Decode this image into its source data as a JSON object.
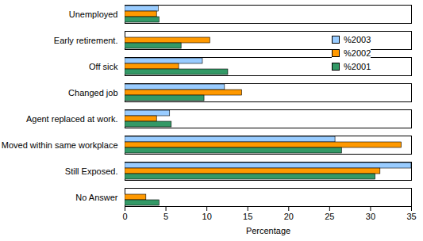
{
  "chart_data": {
    "type": "bar",
    "orientation": "horizontal",
    "legend": "right",
    "x_label": "Percentage",
    "categories": [
      "Unemployed",
      "Early retirement.",
      "Off sick",
      "Changed job",
      "Agent replaced at work.",
      "Moved within same workplace",
      "Still Exposed.",
      "No Answer"
    ],
    "series": [
      {
        "name": "%2003",
        "color": "#99ccff",
        "values": [
          4.1,
          null,
          9.5,
          12.2,
          5.5,
          25.7,
          35,
          null
        ]
      },
      {
        "name": "%2002",
        "color": "#ff9900",
        "values": [
          3.9,
          10.4,
          6.6,
          14.3,
          3.9,
          33.8,
          31.2,
          2.6
        ]
      },
      {
        "name": "%2001",
        "color": "#339966",
        "values": [
          4.2,
          6.9,
          12.6,
          9.7,
          5.7,
          26.5,
          30.6,
          4.2
        ]
      }
    ],
    "xlim": [
      0,
      35
    ],
    "xticks": [
      0,
      5,
      10,
      15,
      20,
      25,
      30,
      35
    ]
  }
}
